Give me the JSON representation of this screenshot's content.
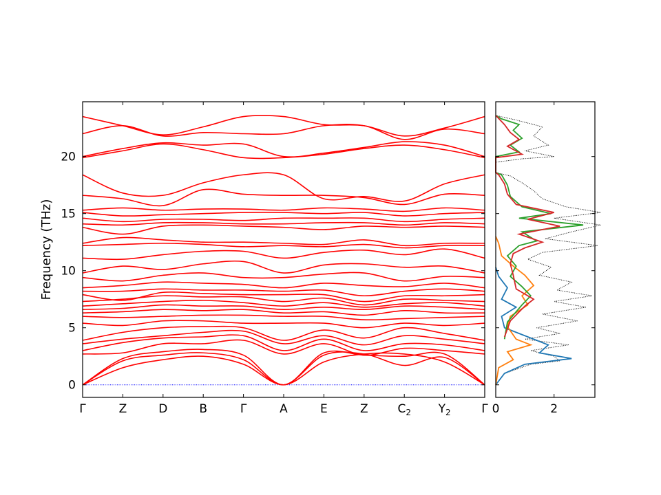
{
  "chart_data": [
    {
      "type": "line",
      "title": "",
      "xlabel": "",
      "ylabel": "Frequency (THz)",
      "ylim": [
        -1.1,
        24.8
      ],
      "y_ticks": [
        0,
        5,
        10,
        15,
        20
      ],
      "x_ticks": [
        "Γ",
        "Z",
        "D",
        "B",
        "Γ",
        "A",
        "E",
        "Z",
        "C2",
        "Y2",
        "Γ"
      ],
      "x_tick_parts": [
        [
          "Γ",
          ""
        ],
        [
          "Z",
          ""
        ],
        [
          "D",
          ""
        ],
        [
          "B",
          ""
        ],
        [
          "Γ",
          ""
        ],
        [
          "A",
          ""
        ],
        [
          "E",
          ""
        ],
        [
          "Z",
          ""
        ],
        [
          "C",
          "2"
        ],
        [
          "Y",
          "2"
        ],
        [
          "Γ",
          ""
        ]
      ],
      "grid": false,
      "line_color": "#ff0000",
      "zero_line_color": "#0000ff",
      "branch_anchor_values": [
        [
          0,
          1.5,
          2.2,
          2.5,
          1.8,
          0,
          2.0,
          2.7,
          2.7,
          2.0,
          0
        ],
        [
          0,
          2.1,
          2.6,
          2.8,
          2.2,
          0,
          2.6,
          2.7,
          1.7,
          2.4,
          0
        ],
        [
          0,
          2.3,
          2.9,
          3.1,
          2.6,
          0,
          2.8,
          2.6,
          2.5,
          2.7,
          0
        ],
        [
          2.7,
          2.8,
          3.6,
          3.6,
          3.9,
          2.7,
          3.6,
          2.6,
          3.2,
          3.0,
          2.7
        ],
        [
          3.0,
          3.7,
          4.1,
          4.2,
          4.3,
          3.0,
          4.0,
          3.0,
          3.6,
          3.5,
          3.0
        ],
        [
          3.6,
          4.0,
          4.3,
          4.6,
          4.7,
          3.6,
          4.3,
          3.5,
          4.3,
          4.0,
          3.6
        ],
        [
          3.9,
          4.6,
          5.0,
          5.1,
          5.0,
          3.9,
          4.8,
          4.1,
          5.0,
          4.5,
          3.9
        ],
        [
          5.4,
          5.2,
          5.6,
          5.6,
          5.4,
          5.4,
          5.4,
          5.0,
          5.4,
          5.2,
          5.4
        ],
        [
          6.0,
          5.9,
          6.0,
          6.1,
          6.1,
          6.0,
          6.0,
          5.7,
          5.8,
          5.9,
          6.0
        ],
        [
          6.3,
          6.4,
          6.6,
          6.5,
          6.6,
          6.3,
          6.4,
          6.1,
          6.5,
          6.3,
          6.3
        ],
        [
          6.6,
          6.7,
          7.0,
          6.9,
          6.9,
          6.6,
          6.8,
          6.6,
          6.9,
          6.8,
          6.6
        ],
        [
          6.9,
          7.1,
          7.3,
          7.4,
          7.2,
          6.9,
          7.2,
          6.8,
          7.1,
          7.2,
          6.9
        ],
        [
          7.3,
          7.5,
          7.8,
          7.7,
          7.7,
          7.3,
          7.6,
          7.0,
          7.5,
          7.4,
          7.3
        ],
        [
          7.9,
          7.4,
          8.1,
          8.0,
          7.9,
          7.9,
          7.9,
          7.3,
          7.8,
          7.8,
          7.9
        ],
        [
          8.2,
          8.2,
          8.4,
          8.3,
          8.3,
          8.2,
          8.3,
          7.8,
          8.2,
          8.4,
          8.2
        ],
        [
          8.5,
          8.7,
          9.0,
          8.9,
          8.8,
          8.5,
          8.9,
          8.7,
          8.6,
          8.9,
          8.5
        ],
        [
          9.4,
          9.1,
          9.6,
          9.8,
          9.4,
          9.4,
          9.7,
          9.8,
          9.1,
          9.5,
          9.4
        ],
        [
          9.8,
          10.4,
          10.1,
          10.6,
          10.8,
          9.8,
          10.5,
          10.6,
          10.3,
          10.4,
          9.8
        ],
        [
          11.1,
          11.0,
          11.4,
          11.7,
          11.7,
          11.1,
          11.6,
          11.8,
          11.4,
          11.9,
          11.1
        ],
        [
          12.2,
          12.3,
          12.4,
          12.3,
          12.1,
          12.2,
          12.1,
          12.3,
          12.0,
          12.2,
          12.2
        ],
        [
          12.4,
          12.9,
          12.7,
          12.5,
          12.5,
          12.4,
          12.3,
          12.7,
          12.2,
          12.4,
          12.4
        ],
        [
          13.8,
          13.2,
          13.9,
          14.0,
          13.9,
          13.8,
          13.6,
          13.9,
          13.8,
          13.9,
          13.8
        ],
        [
          14.1,
          14.0,
          14.2,
          14.2,
          14.1,
          14.1,
          14.2,
          14.2,
          14.0,
          14.2,
          14.1
        ],
        [
          14.6,
          14.3,
          14.5,
          14.5,
          14.4,
          14.6,
          14.6,
          14.6,
          14.3,
          14.5,
          14.6
        ],
        [
          15.1,
          14.8,
          14.9,
          15.0,
          15.1,
          15.1,
          15.0,
          15.1,
          14.8,
          15.0,
          15.1
        ],
        [
          15.3,
          15.5,
          15.3,
          15.4,
          15.4,
          15.3,
          15.5,
          15.4,
          15.2,
          15.5,
          15.3
        ],
        [
          16.6,
          16.3,
          15.7,
          17.1,
          16.7,
          16.6,
          16.6,
          16.4,
          15.8,
          16.7,
          16.6
        ],
        [
          18.4,
          16.8,
          16.6,
          17.7,
          18.4,
          18.4,
          16.3,
          16.5,
          16.1,
          17.6,
          18.4
        ],
        [
          19.9,
          20.5,
          21.1,
          20.6,
          19.9,
          19.9,
          20.2,
          20.7,
          21.0,
          20.6,
          19.9
        ],
        [
          20.0,
          20.7,
          21.2,
          21.0,
          21.1,
          20.0,
          20.3,
          20.8,
          21.3,
          21.0,
          20.0
        ],
        [
          22.0,
          22.7,
          21.8,
          22.1,
          22.0,
          22.0,
          22.7,
          22.7,
          21.5,
          22.4,
          22.0
        ],
        [
          23.5,
          22.7,
          21.9,
          22.6,
          23.5,
          23.5,
          22.8,
          22.7,
          21.8,
          22.5,
          23.5
        ]
      ]
    },
    {
      "type": "line",
      "title": "",
      "xlabel": "",
      "ylabel": "",
      "xlim": [
        0,
        3.4
      ],
      "ylim": [
        -1.1,
        24.8
      ],
      "x_ticks": [
        0,
        2
      ],
      "y_ticks": [
        0,
        5,
        10,
        15,
        20
      ],
      "grid": false,
      "series": [
        {
          "color": "#000000",
          "style": "dotted",
          "points": [
            [
              0,
              0
            ],
            [
              0.3,
              1.0
            ],
            [
              1.2,
              1.8
            ],
            [
              2.2,
              2.1
            ],
            [
              2.0,
              2.5
            ],
            [
              1.2,
              3.0
            ],
            [
              2.5,
              3.5
            ],
            [
              1.0,
              4.0
            ],
            [
              2.2,
              4.5
            ],
            [
              1.4,
              5.0
            ],
            [
              2.8,
              5.6
            ],
            [
              1.6,
              6.2
            ],
            [
              3.1,
              6.8
            ],
            [
              2.0,
              7.3
            ],
            [
              3.3,
              7.8
            ],
            [
              2.1,
              8.3
            ],
            [
              2.6,
              9.0
            ],
            [
              1.5,
              9.6
            ],
            [
              1.9,
              10.3
            ],
            [
              1.1,
              11.0
            ],
            [
              1.6,
              11.6
            ],
            [
              3.5,
              12.2
            ],
            [
              1.7,
              12.8
            ],
            [
              2.6,
              13.4
            ],
            [
              3.6,
              14.0
            ],
            [
              2.0,
              14.6
            ],
            [
              3.6,
              15.1
            ],
            [
              2.4,
              15.6
            ],
            [
              1.6,
              16.3
            ],
            [
              1.3,
              17.0
            ],
            [
              0.9,
              17.7
            ],
            [
              0.5,
              18.3
            ],
            [
              0,
              18.6
            ],
            [
              0,
              19.5
            ],
            [
              0.9,
              19.8
            ],
            [
              2.0,
              20.0
            ],
            [
              1.0,
              20.5
            ],
            [
              1.8,
              21.0
            ],
            [
              1.3,
              21.8
            ],
            [
              1.6,
              22.6
            ],
            [
              0.7,
              23.2
            ],
            [
              0,
              23.6
            ]
          ]
        },
        {
          "color": "#1f77b4",
          "style": "solid",
          "points": [
            [
              0,
              0
            ],
            [
              0.3,
              1.0
            ],
            [
              1.0,
              1.8
            ],
            [
              2.6,
              2.3
            ],
            [
              1.5,
              2.8
            ],
            [
              1.8,
              3.5
            ],
            [
              1.1,
              4.2
            ],
            [
              0.3,
              5.0
            ],
            [
              0.2,
              6.0
            ],
            [
              0.7,
              6.8
            ],
            [
              0.2,
              7.5
            ],
            [
              0.4,
              8.5
            ],
            [
              0.1,
              9.5
            ],
            [
              0,
              10.3
            ]
          ]
        },
        {
          "color": "#ff7f0e",
          "style": "solid",
          "points": [
            [
              0,
              0
            ],
            [
              0.1,
              1.5
            ],
            [
              0.6,
              2.2
            ],
            [
              0.4,
              2.9
            ],
            [
              1.2,
              3.5
            ],
            [
              0.7,
              4.0
            ],
            [
              0.4,
              5.1
            ],
            [
              0.5,
              6.0
            ],
            [
              1.1,
              7.0
            ],
            [
              0.9,
              7.8
            ],
            [
              1.3,
              8.7
            ],
            [
              1.0,
              9.6
            ],
            [
              0.6,
              10.4
            ],
            [
              0.2,
              11.3
            ],
            [
              0.1,
              12.4
            ],
            [
              0,
              13.0
            ]
          ]
        },
        {
          "color": "#2ca02c",
          "style": "solid",
          "points": [
            [
              0.3,
              4.0
            ],
            [
              0.4,
              5.5
            ],
            [
              0.9,
              7.0
            ],
            [
              1.2,
              7.8
            ],
            [
              0.9,
              8.6
            ],
            [
              0.5,
              9.5
            ],
            [
              0.7,
              10.4
            ],
            [
              0.4,
              11.3
            ],
            [
              0.8,
              12.2
            ],
            [
              1.4,
              12.6
            ],
            [
              0.9,
              13.4
            ],
            [
              3.0,
              14.0
            ],
            [
              0.8,
              14.6
            ],
            [
              1.9,
              15.0
            ],
            [
              0.9,
              15.6
            ],
            [
              0.5,
              16.5
            ],
            [
              0.4,
              17.5
            ],
            [
              0.2,
              18.4
            ],
            [
              0,
              18.6
            ],
            [
              0,
              20.0
            ],
            [
              0.8,
              20.4
            ],
            [
              0.5,
              21.0
            ],
            [
              0.9,
              21.6
            ],
            [
              0.6,
              22.3
            ],
            [
              0.8,
              22.8
            ],
            [
              0.2,
              23.3
            ],
            [
              0,
              23.6
            ]
          ]
        },
        {
          "color": "#d62728",
          "style": "solid",
          "points": [
            [
              0.3,
              4.2
            ],
            [
              0.5,
              5.6
            ],
            [
              1.0,
              6.9
            ],
            [
              1.3,
              7.5
            ],
            [
              0.7,
              8.4
            ],
            [
              0.6,
              9.6
            ],
            [
              0.5,
              10.6
            ],
            [
              0.6,
              11.5
            ],
            [
              1.0,
              12.0
            ],
            [
              1.6,
              12.5
            ],
            [
              0.8,
              13.2
            ],
            [
              2.2,
              13.9
            ],
            [
              1.1,
              14.5
            ],
            [
              2.0,
              15.1
            ],
            [
              0.7,
              15.8
            ],
            [
              0.4,
              16.7
            ],
            [
              0.3,
              17.6
            ],
            [
              0.1,
              18.4
            ],
            [
              0,
              18.6
            ],
            [
              0,
              19.9
            ],
            [
              0.9,
              20.2
            ],
            [
              0.4,
              20.9
            ],
            [
              0.8,
              21.5
            ],
            [
              0.5,
              22.1
            ],
            [
              0.3,
              22.8
            ],
            [
              0,
              23.6
            ]
          ]
        }
      ]
    }
  ]
}
